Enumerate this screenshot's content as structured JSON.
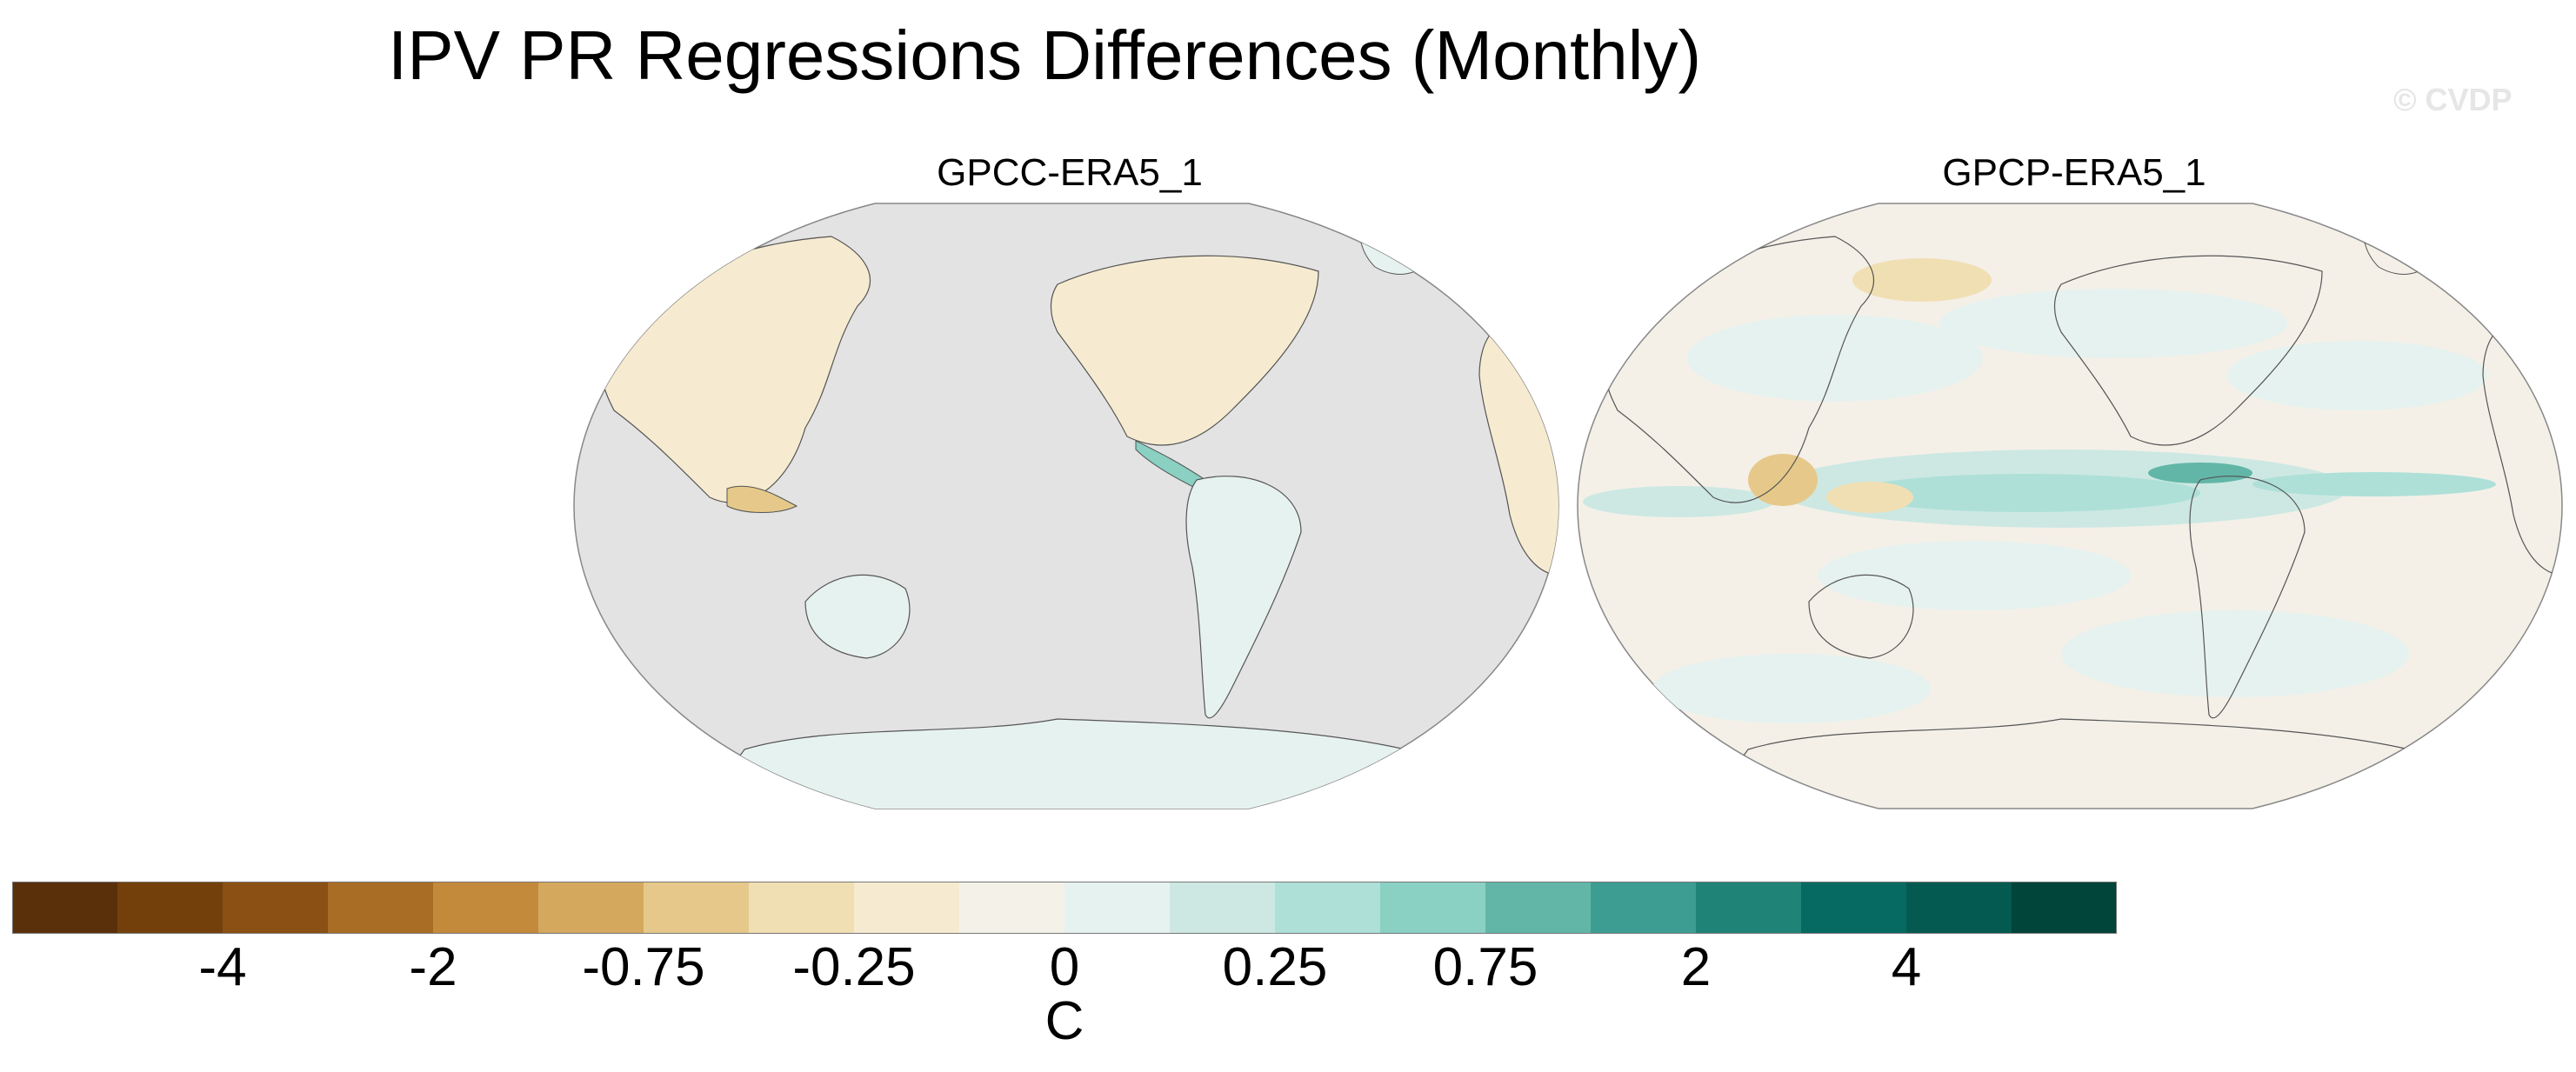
{
  "title": "IPV PR Regressions Differences (Monthly)",
  "watermark": "© CVDP",
  "panels": [
    {
      "label": "GPCC-ERA5_1",
      "background": "land-only data; ocean masked in grey"
    },
    {
      "label": "GPCP-ERA5_1",
      "background": "global coverage"
    }
  ],
  "colorbar": {
    "unit": "C",
    "tick_labels": [
      "-4",
      "-2",
      "-0.75",
      "-0.25",
      "0",
      "0.25",
      "0.75",
      "2",
      "4"
    ],
    "levels": [
      -5,
      -4,
      -3,
      -2,
      -1,
      -0.75,
      -0.5,
      -0.25,
      0,
      0.25,
      0.5,
      0.75,
      1,
      2,
      3,
      4,
      5
    ],
    "colors": [
      "#5a300a",
      "#73400c",
      "#8a5014",
      "#a96d25",
      "#c48a3b",
      "#d4a95e",
      "#e6c98a",
      "#f1dfb4",
      "#f6ebd0",
      "#f4f1e9",
      "#e6f2ef",
      "#cde8e3",
      "#aee0d8",
      "#8ad0c3",
      "#62b6a8",
      "#3e9d92",
      "#1f8378",
      "#066a62",
      "#045a51",
      "#00443a"
    ]
  },
  "colors": {
    "masked": "#e3e3e3",
    "neutral": "#f4f0e8",
    "coast": "#555555"
  }
}
